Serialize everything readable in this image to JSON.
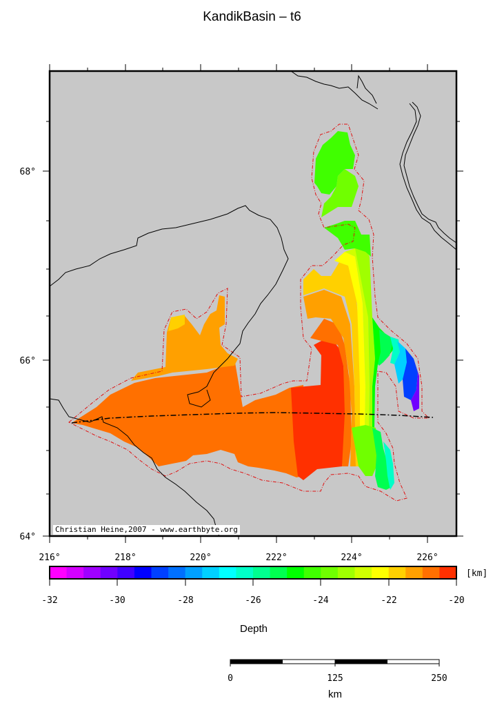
{
  "title": "KandikBasin – t6",
  "map": {
    "lon_ticks": [
      "216°",
      "218°",
      "220°",
      "222°",
      "224°",
      "226°"
    ],
    "lat_ticks": [
      "64°",
      "66°",
      "68°"
    ],
    "credit": "Christian Heine,2007 - www.earthbyte.org",
    "background_color": "#c8c8c8"
  },
  "colorbar": {
    "unit": "[km]",
    "tick_labels": [
      "-32",
      "-30",
      "-28",
      "-26",
      "-24",
      "-22",
      "-20"
    ],
    "label": "Depth",
    "colors": [
      "#ff00ff",
      "#d400ff",
      "#a000ff",
      "#7000ff",
      "#4000ff",
      "#0000ff",
      "#0040ff",
      "#0070ff",
      "#00a0ff",
      "#00d0ff",
      "#00ffff",
      "#00ffc8",
      "#00ff90",
      "#00ff50",
      "#00ff00",
      "#40ff00",
      "#70ff00",
      "#a0ff00",
      "#d0ff00",
      "#ffff00",
      "#ffd000",
      "#ffa000",
      "#ff7000",
      "#ff3000"
    ]
  },
  "scalebar": {
    "labels": [
      "0",
      "125",
      "250"
    ],
    "unit": "km"
  }
}
